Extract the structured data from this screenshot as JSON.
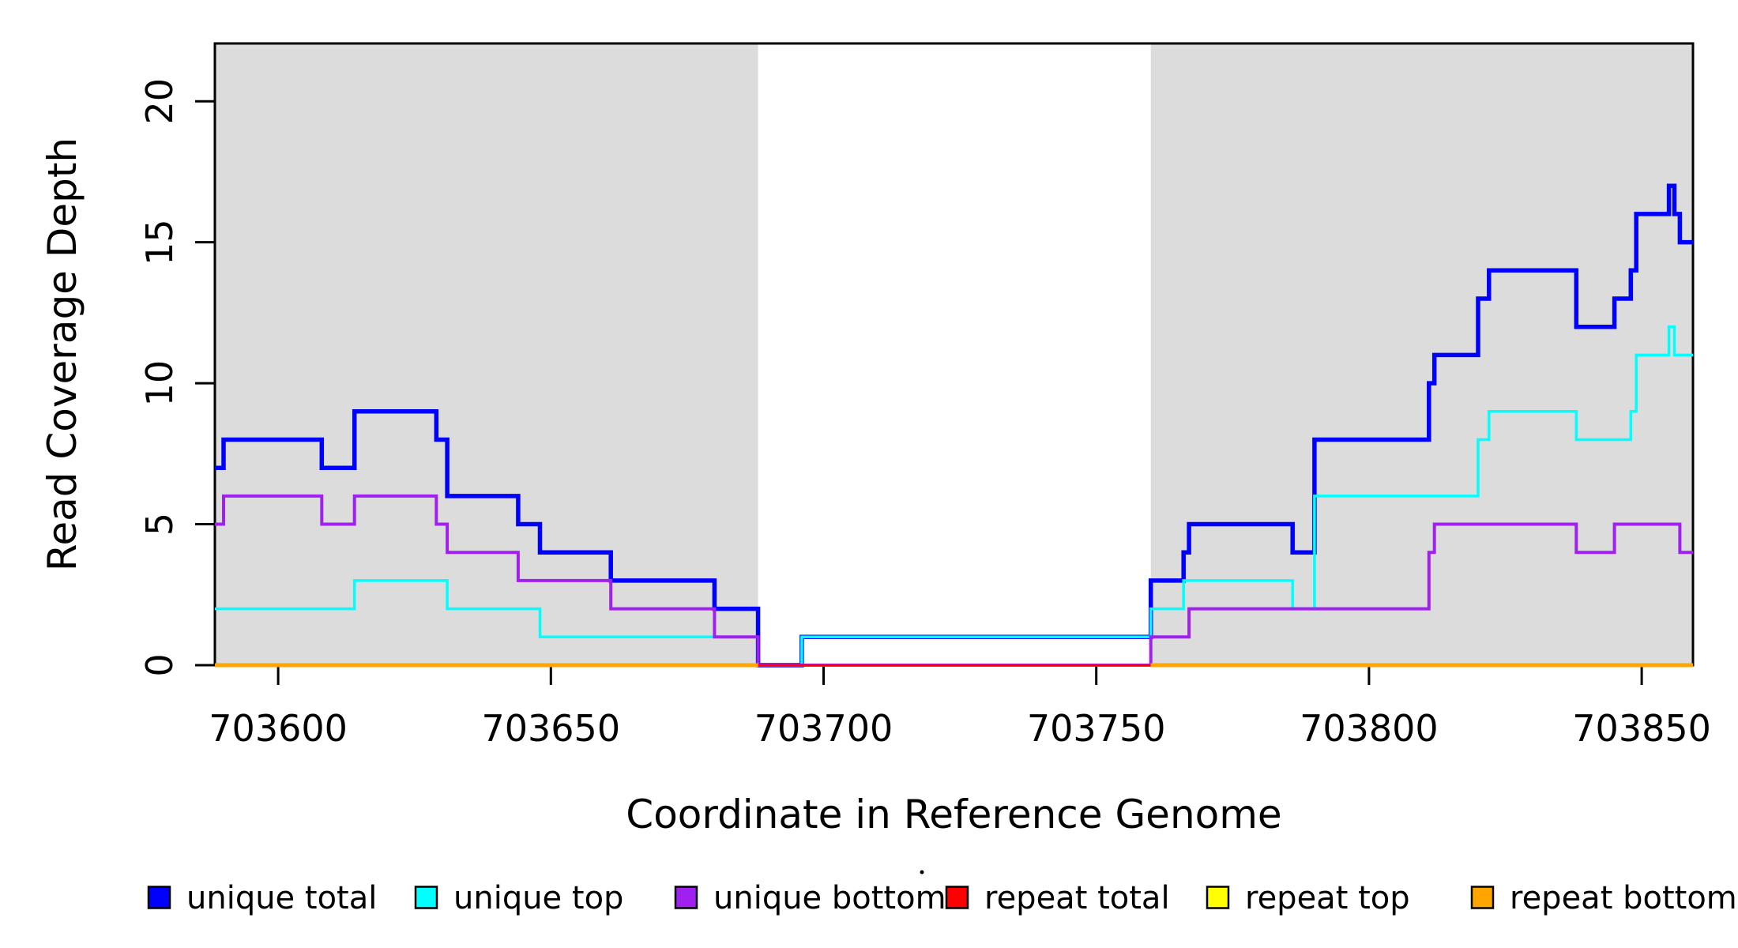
{
  "figure": {
    "background": "#FFFFFF",
    "stray_mark": "."
  },
  "chart_data": {
    "type": "line",
    "subtype": "step-coverage-plot",
    "title": "",
    "xlabel": "Coordinate in Reference Genome",
    "ylabel": "Read Coverage Depth",
    "xlim": [
      703588.4,
      703859.4
    ],
    "ylim": [
      0,
      22.05
    ],
    "x_ticks": [
      703600,
      703650,
      703700,
      703750,
      703800,
      703850
    ],
    "y_ticks": [
      0,
      5,
      10,
      15,
      20
    ],
    "grid": false,
    "background_color": "#FFFFFF",
    "shaded_region_color": "#DCDCDC",
    "shaded_regions": [
      {
        "start": 703588.4,
        "end": 703688,
        "meaning": "flanking unique region (gray)"
      },
      {
        "start": 703760,
        "end": 703859.4,
        "meaning": "flanking unique region (gray)"
      }
    ],
    "gap_region": {
      "start": 703688,
      "end": 703760,
      "meaning": "unshaded (white) region"
    },
    "series": [
      {
        "name": "unique total",
        "color": "#0000FF",
        "line_width": 5.5,
        "segments": [
          [
            703588.4,
            703590,
            7
          ],
          [
            703590,
            703608,
            8
          ],
          [
            703608,
            703614,
            7
          ],
          [
            703614,
            703629,
            9
          ],
          [
            703629,
            703631,
            8
          ],
          [
            703631,
            703644,
            6
          ],
          [
            703644,
            703648,
            5
          ],
          [
            703648,
            703661,
            4
          ],
          [
            703661,
            703680,
            3
          ],
          [
            703680,
            703688,
            2
          ],
          [
            703688,
            703696,
            0
          ],
          [
            703696,
            703760,
            1
          ],
          [
            703760,
            703766,
            3
          ],
          [
            703766,
            703767,
            4
          ],
          [
            703767,
            703786,
            5
          ],
          [
            703786,
            703790,
            4
          ],
          [
            703790,
            703811,
            8
          ],
          [
            703811,
            703812,
            10
          ],
          [
            703812,
            703820,
            11
          ],
          [
            703820,
            703822,
            13
          ],
          [
            703822,
            703838,
            14
          ],
          [
            703838,
            703845,
            12
          ],
          [
            703845,
            703848,
            13
          ],
          [
            703848,
            703849,
            14
          ],
          [
            703849,
            703855,
            16
          ],
          [
            703855,
            703856,
            17
          ],
          [
            703856,
            703857,
            16
          ],
          [
            703857,
            703859.4,
            15
          ]
        ]
      },
      {
        "name": "unique top",
        "color": "#00FFFF",
        "line_width": 3.5,
        "segments": [
          [
            703588.4,
            703614,
            2
          ],
          [
            703614,
            703631,
            3
          ],
          [
            703631,
            703648,
            2
          ],
          [
            703648,
            703688,
            1
          ],
          [
            703688,
            703696,
            0
          ],
          [
            703696,
            703760,
            1
          ],
          [
            703760,
            703766,
            2
          ],
          [
            703766,
            703786,
            3
          ],
          [
            703786,
            703790,
            2
          ],
          [
            703790,
            703820,
            6
          ],
          [
            703820,
            703822,
            8
          ],
          [
            703822,
            703838,
            9
          ],
          [
            703838,
            703848,
            8
          ],
          [
            703848,
            703849,
            9
          ],
          [
            703849,
            703855,
            11
          ],
          [
            703855,
            703856,
            12
          ],
          [
            703856,
            703859.4,
            11
          ]
        ]
      },
      {
        "name": "unique bottom",
        "color": "#A020F0",
        "line_width": 4,
        "segments": [
          [
            703588.4,
            703590,
            5
          ],
          [
            703590,
            703608,
            6
          ],
          [
            703608,
            703614,
            5
          ],
          [
            703614,
            703629,
            6
          ],
          [
            703629,
            703631,
            5
          ],
          [
            703631,
            703644,
            4
          ],
          [
            703644,
            703661,
            3
          ],
          [
            703661,
            703680,
            2
          ],
          [
            703680,
            703688,
            1
          ],
          [
            703688,
            703760,
            0
          ],
          [
            703760,
            703767,
            1
          ],
          [
            703767,
            703811,
            2
          ],
          [
            703811,
            703812,
            4
          ],
          [
            703812,
            703838,
            5
          ],
          [
            703838,
            703845,
            4
          ],
          [
            703845,
            703857,
            5
          ],
          [
            703857,
            703859.4,
            4
          ]
        ]
      },
      {
        "name": "repeat total",
        "color": "#FF0000",
        "line_width": 2.5,
        "segments": [
          [
            703588.4,
            703859.4,
            0
          ]
        ]
      },
      {
        "name": "repeat top",
        "color": "#FFFF00",
        "line_width": 3.5,
        "segments": [
          [
            703588.4,
            703688,
            0
          ],
          [
            703760,
            703859.4,
            0
          ]
        ]
      },
      {
        "name": "repeat bottom",
        "color": "#FFA500",
        "line_width": 5,
        "segments": [
          [
            703588.4,
            703688,
            0
          ],
          [
            703760,
            703859.4,
            0
          ]
        ]
      }
    ],
    "legend": {
      "position": "bottom",
      "entries": [
        {
          "label": "unique total",
          "color": "#0000FF"
        },
        {
          "label": "unique top",
          "color": "#00FFFF"
        },
        {
          "label": "unique bottom",
          "color": "#A020F0"
        },
        {
          "label": "repeat total",
          "color": "#FF0000"
        },
        {
          "label": "repeat top",
          "color": "#FFFF00"
        },
        {
          "label": "repeat bottom",
          "color": "#FFA500"
        }
      ]
    }
  }
}
